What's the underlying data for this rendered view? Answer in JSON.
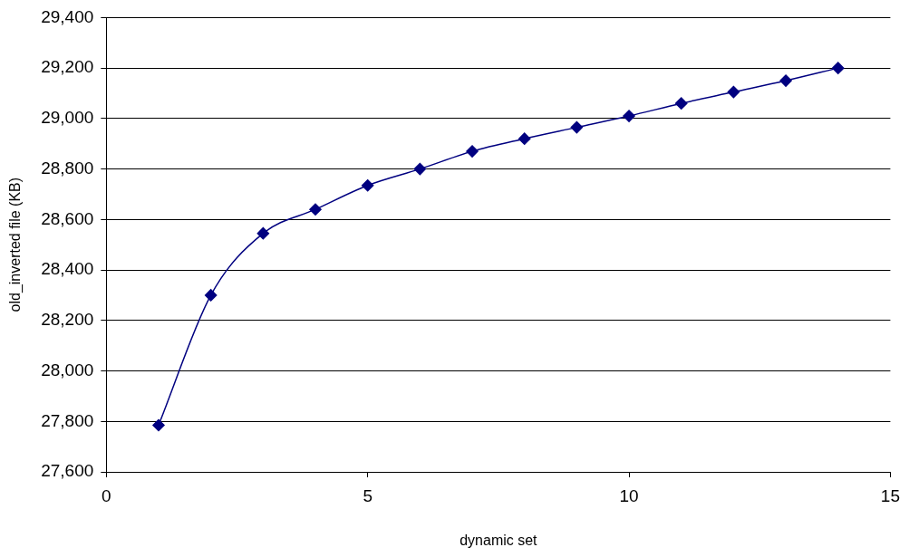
{
  "chart_data": {
    "type": "line",
    "xlabel": "dynamic set",
    "ylabel": "old_inverted file (KB)",
    "x": [
      1,
      2,
      3,
      4,
      5,
      6,
      7,
      8,
      9,
      10,
      11,
      12,
      13,
      14
    ],
    "series": [
      {
        "color": "#000080",
        "values": [
          27785,
          28300,
          28545,
          28640,
          28735,
          28800,
          28870,
          28920,
          28965,
          29010,
          29060,
          29105,
          29150,
          29200
        ]
      }
    ],
    "xlim": [
      0,
      15
    ],
    "xticks": [
      0,
      5,
      10,
      15
    ],
    "ylim": [
      27600,
      29400
    ],
    "yticks": [
      {
        "value": 27600,
        "label": "27,600"
      },
      {
        "value": 27800,
        "label": "27,800"
      },
      {
        "value": 28000,
        "label": "28,000"
      },
      {
        "value": 28200,
        "label": "28,200"
      },
      {
        "value": 28400,
        "label": "28,400"
      },
      {
        "value": 28600,
        "label": "28,600"
      },
      {
        "value": 28800,
        "label": "28,800"
      },
      {
        "value": 29000,
        "label": "29,000"
      },
      {
        "value": 29200,
        "label": "29,200"
      },
      {
        "value": 29400,
        "label": "29,400"
      }
    ],
    "grid": "y",
    "legend": false,
    "marker": "diamond",
    "line_style": "solid"
  }
}
